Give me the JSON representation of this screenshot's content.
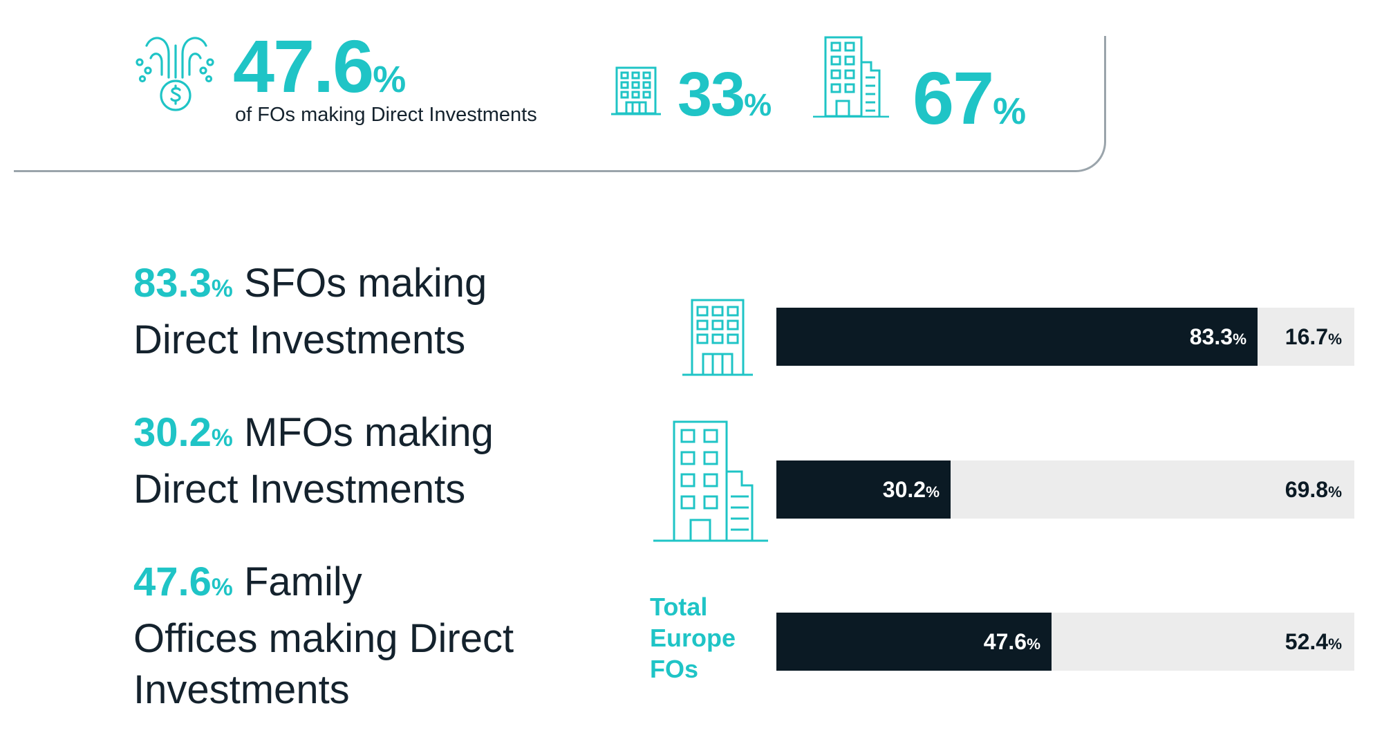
{
  "header": {
    "headline_value": "47.6",
    "headline_unit": "%",
    "headline_caption": "of FOs making Direct Investments",
    "sfo_share_value": "33",
    "sfo_share_unit": "%",
    "mfo_share_value": "67",
    "mfo_share_unit": "%"
  },
  "stats": [
    {
      "value": "83.3",
      "unit": "%",
      "text_line1": " SFOs making",
      "text_line2": "Direct Investments",
      "text_line3": ""
    },
    {
      "value": "30.2",
      "unit": "%",
      "text_line1": " MFOs making",
      "text_line2": "Direct Investments",
      "text_line3": ""
    },
    {
      "value": "47.6",
      "unit": "%",
      "text_line1": " Family",
      "text_line2": "Offices making Direct",
      "text_line3": "Investments"
    }
  ],
  "total_label_lines": [
    "Total",
    "Europe",
    "FOs"
  ],
  "colors": {
    "accent": "#1fc4c6",
    "dark": "#0b1a24",
    "track": "#ececec"
  },
  "icons": [
    "money-fountain-icon",
    "small-building-icon",
    "tall-building-icon"
  ],
  "chart_data": {
    "type": "bar",
    "orientation": "horizontal",
    "stacked": true,
    "categories": [
      "SFOs",
      "MFOs",
      "Total Europe FOs"
    ],
    "series": [
      {
        "values": [
          83.3,
          30.2,
          47.6
        ]
      },
      {
        "values": [
          16.7,
          69.8,
          52.4
        ]
      }
    ],
    "value_labels": [
      [
        "83.3",
        "16.7"
      ],
      [
        "30.2",
        "69.8"
      ],
      [
        "47.6",
        "52.4"
      ]
    ],
    "unit": "%",
    "xlim": [
      0,
      100
    ],
    "grid": false
  }
}
